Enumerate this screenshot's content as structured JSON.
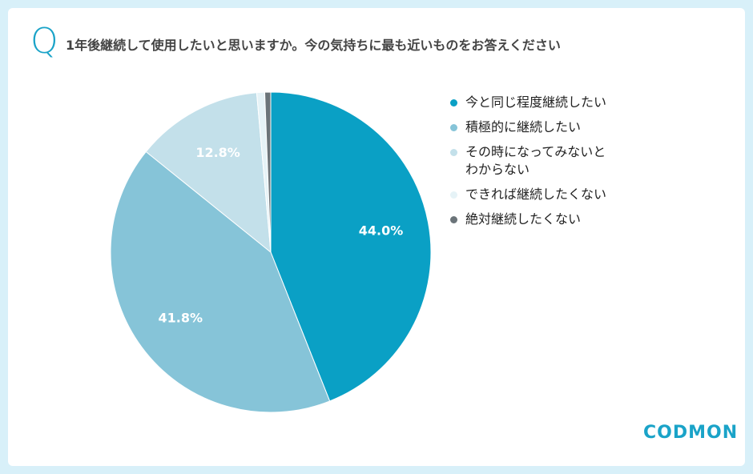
{
  "question_mark": "Q",
  "logo": "CODMON",
  "chart_data": {
    "type": "pie",
    "title": "1年後継続して使用したいと思いますか。今の気持ちに最も近いものをお答えください",
    "categories": [
      "今と同じ程度継続したい",
      "積極的に継続したい",
      "その時になってみないと\nわからない",
      "できれば継続したくない",
      "絶対継続したくない"
    ],
    "values": [
      44.0,
      41.8,
      12.8,
      0.8,
      0.6
    ],
    "value_labels": [
      "44.0%",
      "41.8%",
      "12.8%",
      null,
      null
    ],
    "colors": [
      "#0aa0c5",
      "#86c4d8",
      "#c3e0ea",
      "#e6f3f7",
      "#6b7479"
    ]
  }
}
